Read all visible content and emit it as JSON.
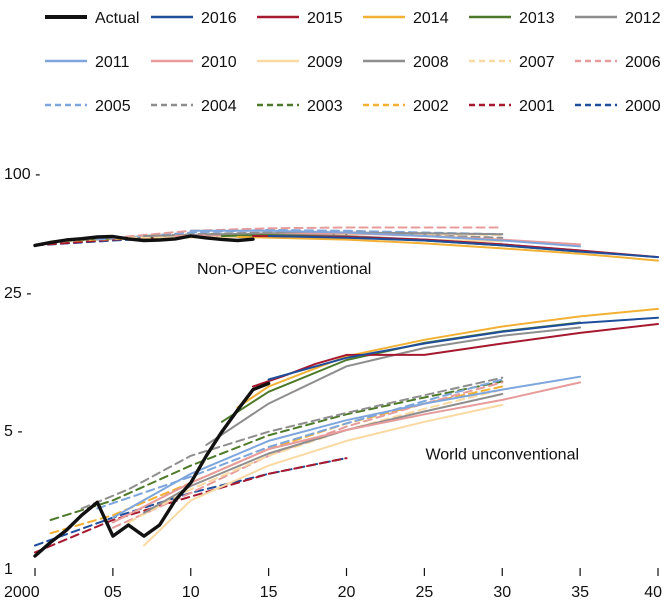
{
  "chart_data": {
    "type": "line",
    "title": "",
    "xlabel": "",
    "ylabel": "",
    "y_scale": "log",
    "ylim": [
      1,
      100
    ],
    "xlim": [
      2000,
      2040
    ],
    "x_ticks": [
      {
        "value": 2000,
        "label": "2000"
      },
      {
        "value": 2005,
        "label": "05"
      },
      {
        "value": 2010,
        "label": "10"
      },
      {
        "value": 2015,
        "label": "15"
      },
      {
        "value": 2020,
        "label": "20"
      },
      {
        "value": 2025,
        "label": "25"
      },
      {
        "value": 2030,
        "label": "30"
      },
      {
        "value": 2035,
        "label": "35"
      },
      {
        "value": 2040,
        "label": "40"
      }
    ],
    "y_ticks": [
      {
        "value": 100,
        "label": "100 -"
      },
      {
        "value": 25,
        "label": "25 -"
      },
      {
        "value": 5,
        "label": "5 -"
      },
      {
        "value": 1,
        "label": "1"
      }
    ],
    "grid": false,
    "legend_position": "top",
    "annotations": [
      {
        "text": "Non-OPEC conventional",
        "x": 2016,
        "y": 33
      },
      {
        "text": "World unconventional",
        "x": 2030,
        "y": 3.8
      }
    ],
    "series": [
      {
        "name": "Actual",
        "color": "#111111",
        "dash": "solid",
        "group": "nonopec",
        "x": [
          2000,
          2001,
          2002,
          2003,
          2004,
          2005,
          2006,
          2007,
          2008,
          2009,
          2010,
          2011,
          2012,
          2013,
          2014
        ],
        "y": [
          43,
          44.5,
          45.8,
          46.5,
          47.4,
          47.7,
          46.4,
          45.5,
          45.8,
          46.4,
          48,
          46.9,
          46.1,
          45.5,
          46.2
        ]
      },
      {
        "name": "Actual",
        "color": "#111111",
        "dash": "solid",
        "group": "unconv",
        "x": [
          2000,
          2001,
          2002,
          2003,
          2004,
          2005,
          2006,
          2007,
          2008,
          2009,
          2010,
          2011,
          2012,
          2013,
          2014,
          2015
        ],
        "y": [
          1.15,
          1.35,
          1.55,
          1.85,
          2.15,
          1.45,
          1.65,
          1.45,
          1.65,
          2.2,
          2.7,
          3.7,
          4.9,
          6.3,
          8.0,
          8.6
        ]
      },
      {
        "name": "2016",
        "color": "#1f4e9c",
        "dash": "solid",
        "group": "nonopec",
        "x": [
          2015,
          2020,
          2025,
          2030,
          2035,
          2040
        ],
        "y": [
          48,
          47,
          45.5,
          43,
          40,
          37.5
        ]
      },
      {
        "name": "2016",
        "color": "#1f4e9c",
        "dash": "solid",
        "group": "unconv",
        "x": [
          2015,
          2020,
          2025,
          2030,
          2035,
          2040
        ],
        "y": [
          9,
          11.6,
          13.7,
          15.7,
          17.4,
          18.5
        ]
      },
      {
        "name": "2015",
        "color": "#a6192e",
        "dash": "solid",
        "group": "nonopec",
        "x": [
          2014,
          2020,
          2025,
          2030,
          2035,
          2040
        ],
        "y": [
          48,
          47.5,
          46,
          43.5,
          40.5,
          37.5
        ]
      },
      {
        "name": "2015",
        "color": "#a6192e",
        "dash": "solid",
        "group": "unconv",
        "x": [
          2014,
          2016,
          2018,
          2020,
          2022,
          2025,
          2030,
          2035,
          2040
        ],
        "y": [
          8.3,
          9.4,
          10.8,
          12,
          12,
          12,
          13.7,
          15.5,
          17.2
        ]
      },
      {
        "name": "2014",
        "color": "#f2b134",
        "dash": "solid",
        "group": "nonopec",
        "x": [
          2013,
          2020,
          2025,
          2030,
          2035,
          2040
        ],
        "y": [
          47.5,
          46,
          44,
          41.5,
          39,
          36
        ]
      },
      {
        "name": "2014",
        "color": "#f2b134",
        "dash": "solid",
        "group": "unconv",
        "x": [
          2013,
          2015,
          2020,
          2025,
          2030,
          2035,
          2040
        ],
        "y": [
          6.5,
          8.3,
          11.8,
          14.3,
          16.7,
          18.8,
          20.5
        ]
      },
      {
        "name": "2013",
        "color": "#4d7a2a",
        "dash": "solid",
        "group": "nonopec",
        "x": [
          2012,
          2015,
          2020,
          2025,
          2030,
          2035
        ],
        "y": [
          48,
          48.5,
          47.5,
          45.5,
          43,
          40
        ]
      },
      {
        "name": "2013",
        "color": "#4d7a2a",
        "dash": "solid",
        "group": "unconv",
        "x": [
          2012,
          2015,
          2020,
          2025,
          2030,
          2035
        ],
        "y": [
          5.5,
          7.8,
          11.3,
          13.8,
          15.8,
          17.5
        ]
      },
      {
        "name": "2012",
        "color": "#8e8e8e",
        "dash": "solid",
        "group": "nonopec",
        "x": [
          2011,
          2015,
          2020,
          2025,
          2030,
          2035
        ],
        "y": [
          49,
          49,
          48,
          46,
          43.5,
          40.5
        ]
      },
      {
        "name": "2012",
        "color": "#8e8e8e",
        "dash": "solid",
        "group": "unconv",
        "x": [
          2011,
          2015,
          2020,
          2025,
          2030,
          2035
        ],
        "y": [
          4.2,
          6.8,
          10.5,
          13,
          15,
          16.5
        ]
      },
      {
        "name": "2011",
        "color": "#7ea6dc",
        "dash": "solid",
        "group": "nonopec",
        "x": [
          2010,
          2015,
          2020,
          2025,
          2030,
          2035
        ],
        "y": [
          51,
          51,
          50,
          48,
          45.5,
          42.5
        ]
      },
      {
        "name": "2011",
        "color": "#7ea6dc",
        "dash": "solid",
        "group": "unconv",
        "x": [
          2005,
          2010,
          2015,
          2020,
          2025,
          2030,
          2035
        ],
        "y": [
          1.8,
          3.0,
          4.4,
          5.6,
          6.8,
          8.0,
          9.3
        ]
      },
      {
        "name": "2010",
        "color": "#e89b9b",
        "dash": "solid",
        "group": "nonopec",
        "x": [
          2009,
          2015,
          2020,
          2025,
          2030,
          2035
        ],
        "y": [
          48,
          49,
          49.5,
          48,
          46,
          43.5
        ]
      },
      {
        "name": "2010",
        "color": "#e89b9b",
        "dash": "solid",
        "group": "unconv",
        "x": [
          2005,
          2010,
          2015,
          2020,
          2025,
          2030,
          2035
        ],
        "y": [
          1.7,
          2.7,
          4.0,
          5.0,
          6.0,
          7.1,
          8.7
        ]
      },
      {
        "name": "2009",
        "color": "#fad9a3",
        "dash": "solid",
        "group": "nonopec",
        "x": [
          2008,
          2015,
          2020,
          2025,
          2030
        ],
        "y": [
          47,
          47.5,
          47,
          46,
          45
        ]
      },
      {
        "name": "2009",
        "color": "#fad9a3",
        "dash": "solid",
        "group": "unconv",
        "x": [
          2007,
          2010,
          2015,
          2020,
          2025,
          2030
        ],
        "y": [
          1.3,
          2.2,
          3.3,
          4.4,
          5.5,
          6.7
        ]
      },
      {
        "name": "2008",
        "color": "#8e8e8e",
        "dash": "solid",
        "group": "nonopec",
        "x": [
          2007,
          2015,
          2020,
          2025,
          2030
        ],
        "y": [
          48,
          49.5,
          50,
          49.5,
          49
        ]
      },
      {
        "name": "2008",
        "color": "#8e8e8e",
        "dash": "solid",
        "group": "unconv",
        "x": [
          2007,
          2010,
          2015,
          2020,
          2025,
          2030
        ],
        "y": [
          1.9,
          2.6,
          3.8,
          5.0,
          6.2,
          7.6
        ]
      },
      {
        "name": "2007",
        "color": "#fad9a3",
        "dash": "dash",
        "group": "nonopec",
        "x": [
          2006,
          2015,
          2020,
          2025,
          2030
        ],
        "y": [
          47,
          48.5,
          49,
          49,
          48.5
        ]
      },
      {
        "name": "2007",
        "color": "#fad9a3",
        "dash": "dash",
        "group": "unconv",
        "x": [
          2006,
          2010,
          2015,
          2020,
          2025,
          2030
        ],
        "y": [
          1.7,
          2.5,
          3.7,
          5.0,
          6.4,
          8.0
        ]
      },
      {
        "name": "2006",
        "color": "#e89b9b",
        "dash": "dash",
        "group": "nonopec",
        "x": [
          2005,
          2010,
          2015,
          2020,
          2025,
          2030
        ],
        "y": [
          47,
          51,
          52.5,
          53,
          53,
          53
        ]
      },
      {
        "name": "2006",
        "color": "#e89b9b",
        "dash": "dash",
        "group": "unconv",
        "x": [
          2005,
          2010,
          2015,
          2020,
          2025,
          2030
        ],
        "y": [
          1.6,
          2.4,
          3.7,
          5.2,
          6.8,
          8.7
        ]
      },
      {
        "name": "2005",
        "color": "#7ea6dc",
        "dash": "dash",
        "group": "nonopec",
        "x": [
          2004,
          2010,
          2015,
          2020,
          2025,
          2030
        ],
        "y": [
          46,
          50,
          51.5,
          51,
          50,
          49
        ]
      },
      {
        "name": "2005",
        "color": "#7ea6dc",
        "dash": "dash",
        "group": "unconv",
        "x": [
          2004,
          2010,
          2015,
          2020,
          2025,
          2030
        ],
        "y": [
          2.0,
          2.9,
          4.1,
          5.4,
          7.0,
          9.0
        ]
      },
      {
        "name": "2004",
        "color": "#8e8e8e",
        "dash": "dash",
        "group": "nonopec",
        "x": [
          2003,
          2010,
          2015,
          2020,
          2025,
          2030
        ],
        "y": [
          46,
          49,
          50,
          49.5,
          48.5,
          47
        ]
      },
      {
        "name": "2004",
        "color": "#8e8e8e",
        "dash": "dash",
        "group": "unconv",
        "x": [
          2003,
          2006,
          2010,
          2015,
          2020,
          2025,
          2030
        ],
        "y": [
          2.0,
          2.5,
          3.7,
          4.9,
          6.1,
          7.5,
          9.2
        ]
      },
      {
        "name": "2003",
        "color": "#4d7a2a",
        "dash": "dash",
        "group": "nonopec",
        "x": [
          2002,
          2010,
          2015,
          2020
        ],
        "y": [
          45.5,
          48.5,
          49,
          48.5
        ]
      },
      {
        "name": "2003",
        "color": "#4d7a2a",
        "dash": "dash",
        "group": "unconv",
        "x": [
          2001,
          2005,
          2010,
          2015,
          2020,
          2025,
          2030
        ],
        "y": [
          1.75,
          2.2,
          3.3,
          4.7,
          6.0,
          7.3,
          8.8
        ]
      },
      {
        "name": "2002",
        "color": "#f2b134",
        "dash": "dash",
        "group": "nonopec",
        "x": [
          2001,
          2010,
          2015,
          2020
        ],
        "y": [
          45,
          48,
          49,
          48.5
        ]
      },
      {
        "name": "2002",
        "color": "#f2b134",
        "dash": "dash",
        "group": "unconv",
        "x": [
          2001,
          2005,
          2010,
          2015,
          2020,
          2025,
          2030
        ],
        "y": [
          1.5,
          1.85,
          2.7,
          4.0,
          5.4,
          6.8,
          8.3
        ]
      },
      {
        "name": "2001",
        "color": "#a6192e",
        "dash": "dash",
        "group": "nonopec",
        "x": [
          2000,
          2005,
          2010,
          2015,
          2020
        ],
        "y": [
          43,
          46,
          48,
          48.5,
          48
        ]
      },
      {
        "name": "2001",
        "color": "#a6192e",
        "dash": "dash",
        "group": "unconv",
        "x": [
          2000,
          2005,
          2010,
          2015,
          2020
        ],
        "y": [
          1.2,
          1.75,
          2.3,
          3.0,
          3.6
        ]
      },
      {
        "name": "2000",
        "color": "#1f4e9c",
        "dash": "dash",
        "group": "nonopec",
        "x": [
          2000,
          2005,
          2010,
          2015,
          2020
        ],
        "y": [
          43,
          45.5,
          47.5,
          48,
          47.5
        ]
      },
      {
        "name": "2000",
        "color": "#1f4e9c",
        "dash": "dash",
        "group": "unconv",
        "x": [
          2000,
          2005,
          2010,
          2015,
          2020
        ],
        "y": [
          1.3,
          1.8,
          2.4,
          3.0,
          3.6
        ]
      }
    ]
  }
}
